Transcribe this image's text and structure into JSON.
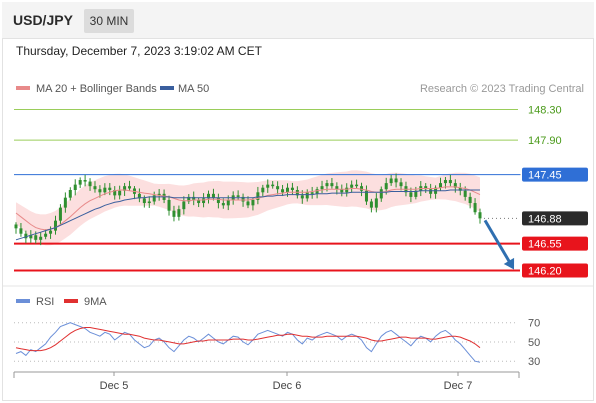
{
  "header": {
    "symbol": "USD/JPY",
    "timeframe": "30 MIN"
  },
  "datetime": "Thursday, December 7, 2023 3:19:02 AM CET",
  "legend": {
    "ma_bb_label": "MA 20 + Bollinger Bands",
    "ma50_label": "MA 50",
    "copyright": "Research © 2023 Trading Central",
    "rsi_label": "RSI",
    "rsi_ma_label": "9MA"
  },
  "colors": {
    "resistance": "#9acd5a",
    "pivot": "#2f6fd6",
    "support": "#e8141c",
    "current": "#2b2b2b",
    "ma20": "#e88a8a",
    "bollinger_fill": "#fbd9d9",
    "ma50": "#3a5f9e",
    "candle": "#2f8f2f",
    "rsi": "#6b8fd8",
    "rsi_ma": "#e03030",
    "arrow": "#2f6fb0"
  },
  "chart_data": [
    {
      "type": "candlestick",
      "x_ticks": [
        "Dec 5",
        "Dec 6",
        "Dec 7"
      ],
      "ylim": [
        146.05,
        148.45
      ],
      "levels": [
        {
          "value": "148.30",
          "kind": "resistance"
        },
        {
          "value": "147.90",
          "kind": "resistance"
        },
        {
          "value": "147.45",
          "kind": "pivot"
        },
        {
          "value": "146.88",
          "kind": "current"
        },
        {
          "value": "146.55",
          "kind": "support"
        },
        {
          "value": "146.20",
          "kind": "support"
        }
      ],
      "close": [
        146.75,
        146.68,
        146.62,
        146.66,
        146.6,
        146.64,
        146.68,
        146.72,
        146.85,
        147.02,
        147.15,
        147.25,
        147.32,
        147.38,
        147.36,
        147.3,
        147.26,
        147.22,
        147.28,
        147.25,
        147.18,
        147.24,
        147.3,
        147.27,
        147.2,
        147.14,
        147.08,
        147.1,
        147.18,
        147.2,
        147.12,
        146.98,
        146.9,
        147.0,
        147.1,
        147.16,
        147.12,
        147.08,
        147.14,
        147.2,
        147.15,
        147.08,
        147.05,
        147.12,
        147.18,
        147.16,
        147.1,
        147.05,
        147.12,
        147.22,
        147.28,
        147.32,
        147.3,
        147.26,
        147.22,
        147.28,
        147.25,
        147.18,
        147.14,
        147.22,
        147.2,
        147.26,
        147.3,
        147.34,
        147.3,
        147.26,
        147.22,
        147.28,
        147.32,
        147.3,
        147.24,
        147.1,
        147.02,
        147.14,
        147.26,
        147.34,
        147.4,
        147.35,
        147.3,
        147.22,
        147.16,
        147.24,
        147.3,
        147.26,
        147.2,
        147.28,
        147.34,
        147.38,
        147.34,
        147.28,
        147.24,
        147.16,
        147.08,
        146.96,
        146.88
      ],
      "ma20": [
        146.95,
        146.9,
        146.85,
        146.8,
        146.76,
        146.74,
        146.73,
        146.74,
        146.76,
        146.8,
        146.85,
        146.9,
        146.96,
        147.02,
        147.07,
        147.11,
        147.14,
        147.17,
        147.2,
        147.22,
        147.24,
        147.25,
        147.25,
        147.24,
        147.23,
        147.22,
        147.21,
        147.2,
        147.19,
        147.18,
        147.17,
        147.16,
        147.14,
        147.12,
        147.11,
        147.11,
        147.12,
        147.12,
        147.12,
        147.13,
        147.13,
        147.13,
        147.12,
        147.12,
        147.12,
        147.12,
        147.12,
        147.12,
        147.13,
        147.14,
        147.16,
        147.18,
        147.19,
        147.2,
        147.21,
        147.22,
        147.22,
        147.22,
        147.22,
        147.22,
        147.23,
        147.24,
        147.25,
        147.26,
        147.26,
        147.26,
        147.26,
        147.26,
        147.27,
        147.27,
        147.26,
        147.25,
        147.23,
        147.22,
        147.22,
        147.23,
        147.25,
        147.26,
        147.26,
        147.26,
        147.26,
        147.26,
        147.27,
        147.27,
        147.27,
        147.27,
        147.28,
        147.29,
        147.29,
        147.29,
        147.28,
        147.27,
        147.25,
        147.22,
        147.19
      ],
      "ma50": [
        146.6,
        146.62,
        146.64,
        146.66,
        146.68,
        146.7,
        146.72,
        146.74,
        146.76,
        146.79,
        146.82,
        146.85,
        146.88,
        146.91,
        146.94,
        146.97,
        147.0,
        147.02,
        147.05,
        147.07,
        147.09,
        147.1,
        147.12,
        147.13,
        147.14,
        147.15,
        147.15,
        147.16,
        147.16,
        147.16,
        147.16,
        147.16,
        147.15,
        147.15,
        147.15,
        147.15,
        147.15,
        147.15,
        147.15,
        147.15,
        147.15,
        147.15,
        147.15,
        147.15,
        147.15,
        147.15,
        147.15,
        147.15,
        147.15,
        147.16,
        147.16,
        147.17,
        147.17,
        147.18,
        147.18,
        147.19,
        147.19,
        147.19,
        147.19,
        147.19,
        147.19,
        147.2,
        147.2,
        147.2,
        147.21,
        147.21,
        147.21,
        147.21,
        147.22,
        147.22,
        147.22,
        147.22,
        147.22,
        147.22,
        147.22,
        147.22,
        147.23,
        147.23,
        147.23,
        147.23,
        147.23,
        147.23,
        147.24,
        147.24,
        147.24,
        147.24,
        147.24,
        147.24,
        147.25,
        147.25,
        147.25,
        147.25,
        147.25,
        147.25,
        147.25
      ]
    },
    {
      "type": "line",
      "y_ticks": [
        "70",
        "50",
        "30"
      ],
      "ylim": [
        25,
        78
      ],
      "rsi": [
        38,
        40,
        36,
        42,
        40,
        44,
        48,
        55,
        60,
        66,
        68,
        70,
        68,
        66,
        64,
        60,
        58,
        56,
        60,
        58,
        52,
        56,
        60,
        58,
        52,
        48,
        44,
        46,
        52,
        54,
        50,
        44,
        40,
        46,
        52,
        56,
        54,
        50,
        54,
        58,
        54,
        50,
        48,
        52,
        56,
        55,
        50,
        47,
        52,
        58,
        60,
        62,
        60,
        58,
        56,
        60,
        58,
        52,
        48,
        54,
        52,
        56,
        58,
        60,
        58,
        56,
        52,
        56,
        58,
        56,
        52,
        44,
        40,
        48,
        56,
        60,
        62,
        58,
        54,
        50,
        46,
        52,
        56,
        54,
        50,
        56,
        60,
        62,
        58,
        52,
        48,
        42,
        36,
        30,
        29
      ],
      "rsi_ma": [
        44,
        43,
        42,
        41,
        41,
        41,
        42,
        44,
        47,
        51,
        55,
        59,
        62,
        64,
        65,
        65,
        64,
        63,
        62,
        61,
        60,
        59,
        58,
        58,
        57,
        56,
        54,
        53,
        52,
        52,
        51,
        50,
        49,
        48,
        48,
        49,
        50,
        51,
        51,
        52,
        52,
        52,
        52,
        52,
        53,
        53,
        53,
        52,
        52,
        53,
        54,
        55,
        56,
        57,
        57,
        58,
        58,
        57,
        56,
        56,
        55,
        55,
        55,
        56,
        56,
        56,
        56,
        56,
        56,
        56,
        55,
        54,
        52,
        51,
        51,
        52,
        53,
        54,
        55,
        55,
        54,
        54,
        54,
        54,
        53,
        53,
        54,
        55,
        56,
        56,
        55,
        53,
        51,
        48,
        44
      ]
    }
  ]
}
